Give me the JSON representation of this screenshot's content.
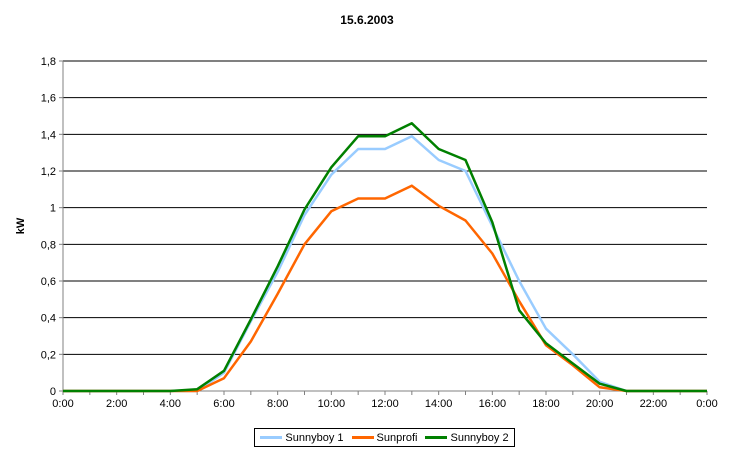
{
  "chart_data": {
    "type": "line",
    "title": "15.6.2003",
    "xlabel": "",
    "ylabel": "kW",
    "x": [
      "0:00",
      "1:00",
      "2:00",
      "3:00",
      "4:00",
      "5:00",
      "6:00",
      "7:00",
      "8:00",
      "9:00",
      "10:00",
      "11:00",
      "12:00",
      "13:00",
      "14:00",
      "15:00",
      "16:00",
      "17:00",
      "18:00",
      "19:00",
      "20:00",
      "21:00",
      "22:00",
      "23:00",
      "0:00"
    ],
    "x_tick_labels": [
      "0:00",
      "2:00",
      "4:00",
      "6:00",
      "8:00",
      "10:00",
      "12:00",
      "14:00",
      "16:00",
      "18:00",
      "20:00",
      "22:00",
      "0:00"
    ],
    "y_tick_labels": [
      "0",
      "0,2",
      "0,4",
      "0,6",
      "0,8",
      "1",
      "1,2",
      "1,4",
      "1,6",
      "1,8"
    ],
    "ylim": [
      0,
      1.8
    ],
    "grid": true,
    "legend_position": "bottom",
    "series": [
      {
        "name": "Sunnyboy 1",
        "color": "#99ccff",
        "values": [
          0,
          0,
          0,
          0,
          0,
          0,
          0.1,
          0.38,
          0.65,
          0.96,
          1.18,
          1.32,
          1.32,
          1.39,
          1.26,
          1.2,
          0.9,
          0.6,
          0.34,
          0.2,
          0.05,
          0,
          0,
          0,
          0
        ]
      },
      {
        "name": "Sunprofi",
        "color": "#ff6600",
        "values": [
          0,
          0,
          0,
          0,
          0,
          0,
          0.07,
          0.27,
          0.53,
          0.8,
          0.98,
          1.05,
          1.05,
          1.12,
          1.01,
          0.93,
          0.75,
          0.49,
          0.25,
          0.14,
          0.02,
          0,
          0,
          0,
          0
        ]
      },
      {
        "name": "Sunnyboy 2",
        "color": "#008000",
        "values": [
          0,
          0,
          0,
          0,
          0,
          0.01,
          0.11,
          0.39,
          0.68,
          0.99,
          1.22,
          1.39,
          1.39,
          1.46,
          1.32,
          1.26,
          0.92,
          0.44,
          0.26,
          0.15,
          0.04,
          0,
          0,
          0,
          0
        ]
      }
    ]
  }
}
